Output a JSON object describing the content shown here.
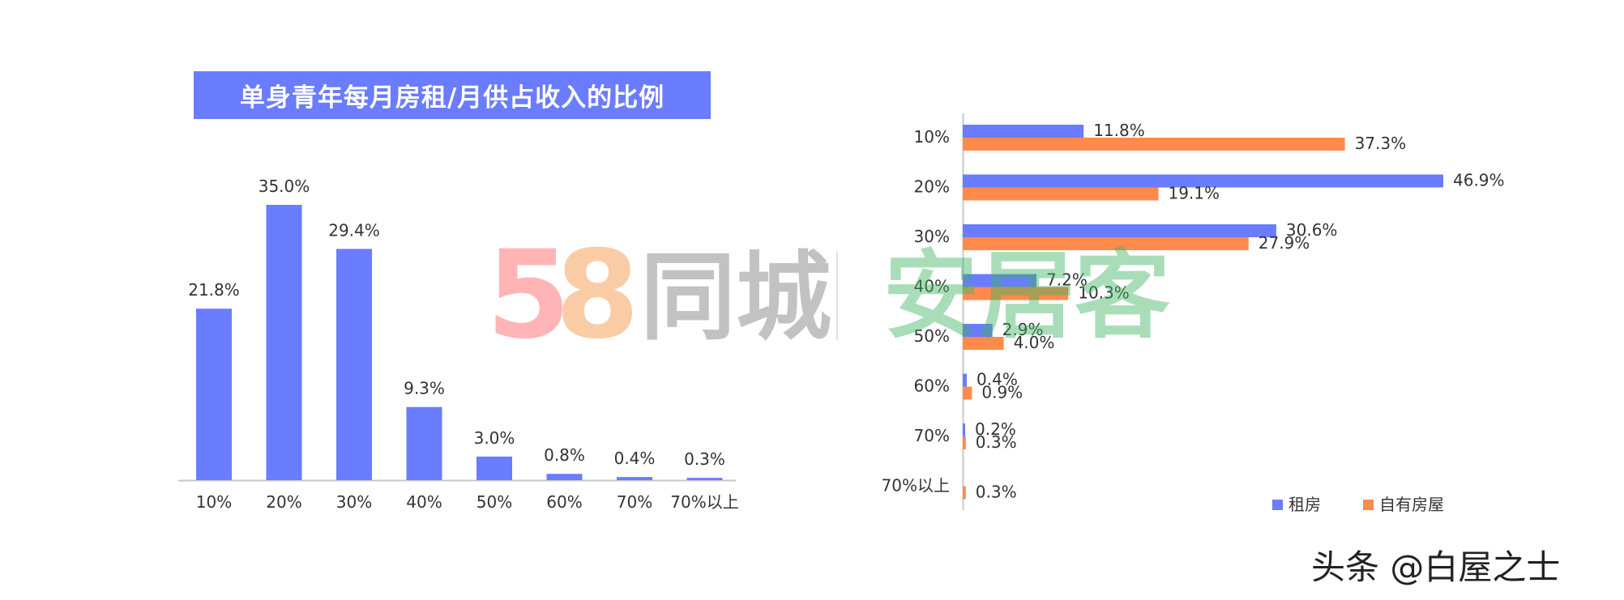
{
  "title": "单身青年每月房租/月供占收入的比例",
  "footer_credit": "头条 @白屋之士",
  "watermark": {
    "brand_58": "58",
    "brand_58_name": "同城",
    "brand_ajk": "安居客"
  },
  "colors": {
    "blue": "#6a7cff",
    "orange": "#ff8a4c",
    "axis": "#c8c8c8",
    "text": "#333333"
  },
  "chart_data": [
    {
      "type": "bar",
      "title": "单身青年每月房租/月供占收入的比例",
      "categories": [
        "10%",
        "20%",
        "30%",
        "40%",
        "50%",
        "60%",
        "70%",
        "70%以上"
      ],
      "values": [
        21.8,
        35.0,
        29.4,
        9.3,
        3.0,
        0.8,
        0.4,
        0.3
      ],
      "value_labels": [
        "21.8%",
        "35.0%",
        "29.4%",
        "9.3%",
        "3.0%",
        "0.8%",
        "0.4%",
        "0.3%"
      ],
      "ylim": [
        0,
        35
      ],
      "grid": false
    },
    {
      "type": "bar",
      "orientation": "horizontal",
      "categories": [
        "10%",
        "20%",
        "30%",
        "40%",
        "50%",
        "60%",
        "70%",
        "70%以上"
      ],
      "series": [
        {
          "name": "租房",
          "color": "#6a7cff",
          "values": [
            11.8,
            46.9,
            30.6,
            7.2,
            2.9,
            0.4,
            0.2,
            0.0
          ],
          "value_labels": [
            "11.8%",
            "46.9%",
            "30.6%",
            "7.2%",
            "2.9%",
            "0.4%",
            "0.2%",
            ""
          ]
        },
        {
          "name": "自有房屋",
          "color": "#ff8a4c",
          "values": [
            37.3,
            19.1,
            27.9,
            10.3,
            4.0,
            0.9,
            0.3,
            0.3
          ],
          "value_labels": [
            "37.3%",
            "19.1%",
            "27.9%",
            "10.3%",
            "4.0%",
            "0.9%",
            "0.3%",
            "0.3%"
          ]
        }
      ],
      "xlim": [
        0,
        46.9
      ],
      "legend": "bottom-right",
      "grid": false
    }
  ]
}
